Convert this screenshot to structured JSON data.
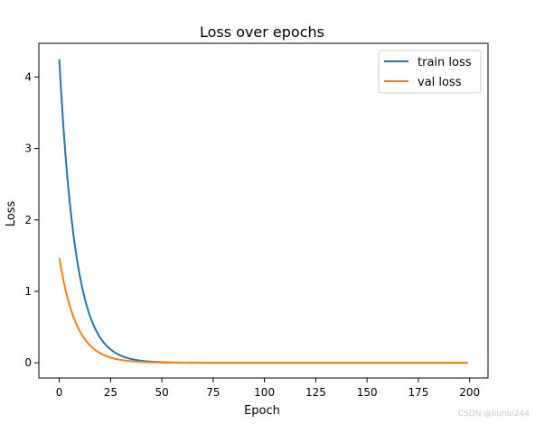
{
  "chart_data": {
    "type": "line",
    "title": "Loss over epochs",
    "xlabel": "Epoch",
    "ylabel": "Loss",
    "xlim": [
      -9.95,
      208.95
    ],
    "ylim": [
      -0.213,
      4.472
    ],
    "xticks": [
      0,
      25,
      50,
      75,
      100,
      125,
      150,
      175,
      200
    ],
    "yticks": [
      0,
      1,
      2,
      3,
      4
    ],
    "grid": false,
    "legend": "top-right",
    "series": [
      {
        "name": "train loss",
        "color": "#1f77b4",
        "model": {
          "kind": "exp_decay",
          "start": 4.25,
          "decay": 0.125,
          "x_start": 0,
          "x_end": 199
        }
      },
      {
        "name": "val loss",
        "color": "#ff7f0e",
        "model": {
          "kind": "exp_decay",
          "start": 1.47,
          "decay": 0.12,
          "x_start": 0,
          "x_end": 199
        }
      }
    ]
  },
  "watermark": "CSDN @liuhui244"
}
